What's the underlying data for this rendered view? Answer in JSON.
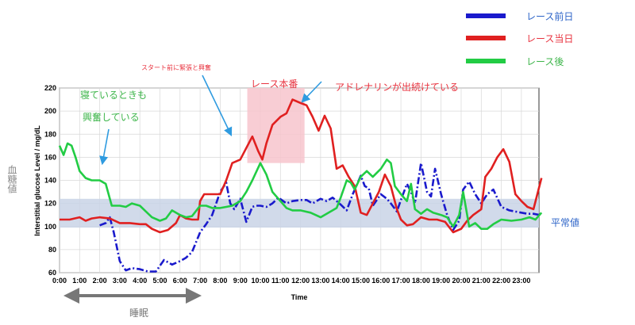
{
  "chart_data": {
    "type": "line",
    "xlabel": "Time",
    "ylabel": "Interstitial glucose Level / mg/dL",
    "ylim": [
      60,
      220
    ],
    "xlim": [
      0,
      24
    ],
    "yticks": [
      60,
      80,
      100,
      120,
      140,
      160,
      180,
      200,
      220
    ],
    "xticks": [
      "0:00",
      "1:00",
      "2:00",
      "3:00",
      "4:00",
      "5:00",
      "6:00",
      "7:00",
      "8:00",
      "9:00",
      "10:00",
      "11:00",
      "12:00",
      "13:00",
      "14:00",
      "15:00",
      "16:00",
      "17:00",
      "18:00",
      "19:00",
      "20:00",
      "21:00",
      "22:00",
      "23:00"
    ],
    "grid": true,
    "legend_position": "top-right",
    "normal_band": [
      99,
      124
    ],
    "series": [
      {
        "name": "レース前日",
        "color": "#1a1acc",
        "style": "dashdot",
        "points": [
          [
            2,
            101
          ],
          [
            2.3,
            103
          ],
          [
            2.5,
            108
          ],
          [
            2.7,
            95
          ],
          [
            3,
            70
          ],
          [
            3.3,
            62
          ],
          [
            3.6,
            64
          ],
          [
            4,
            63
          ],
          [
            4.4,
            61
          ],
          [
            4.8,
            61
          ],
          [
            5.2,
            71
          ],
          [
            5.6,
            67
          ],
          [
            6,
            70
          ],
          [
            6.3,
            73
          ],
          [
            6.6,
            78
          ],
          [
            7,
            95
          ],
          [
            7.3,
            102
          ],
          [
            7.6,
            110
          ],
          [
            8,
            130
          ],
          [
            8.3,
            138
          ],
          [
            8.5,
            120
          ],
          [
            8.7,
            115
          ],
          [
            9,
            124
          ],
          [
            9.3,
            104
          ],
          [
            9.6,
            117
          ],
          [
            9.8,
            118
          ],
          [
            10,
            118
          ],
          [
            10.3,
            117
          ],
          [
            10.6,
            120
          ],
          [
            10.9,
            125
          ],
          [
            11.3,
            120
          ],
          [
            11.6,
            122
          ],
          [
            12,
            123
          ],
          [
            12.3,
            123
          ],
          [
            12.6,
            120
          ],
          [
            13,
            124
          ],
          [
            13.3,
            122
          ],
          [
            13.6,
            125
          ],
          [
            14,
            119
          ],
          [
            14.3,
            114
          ],
          [
            14.6,
            128
          ],
          [
            15,
            144
          ],
          [
            15.2,
            135
          ],
          [
            15.4,
            133
          ],
          [
            15.6,
            118
          ],
          [
            16,
            128
          ],
          [
            16.3,
            124
          ],
          [
            16.5,
            120
          ],
          [
            16.8,
            113
          ],
          [
            17,
            123
          ],
          [
            17.3,
            137
          ],
          [
            17.5,
            130
          ],
          [
            17.7,
            120
          ],
          [
            18,
            155
          ],
          [
            18.3,
            130
          ],
          [
            18.5,
            126
          ],
          [
            18.7,
            150
          ],
          [
            19,
            128
          ],
          [
            19.3,
            110
          ],
          [
            19.6,
            97
          ],
          [
            19.9,
            105
          ],
          [
            20.1,
            132
          ],
          [
            20.4,
            139
          ],
          [
            20.7,
            128
          ],
          [
            21,
            120
          ],
          [
            21.3,
            128
          ],
          [
            21.6,
            132
          ],
          [
            22,
            117
          ],
          [
            22.4,
            114
          ],
          [
            23,
            112
          ],
          [
            23.3,
            111
          ],
          [
            23.6,
            111
          ],
          [
            23.9,
            110
          ]
        ]
      },
      {
        "name": "レース当日",
        "color": "#e02020",
        "style": "solid",
        "points": [
          [
            0,
            106
          ],
          [
            0.5,
            106
          ],
          [
            1,
            108
          ],
          [
            1.3,
            105
          ],
          [
            1.6,
            107
          ],
          [
            2,
            108
          ],
          [
            2.5,
            107
          ],
          [
            3,
            103
          ],
          [
            3.5,
            103
          ],
          [
            4,
            102
          ],
          [
            4.3,
            102
          ],
          [
            4.6,
            98
          ],
          [
            5,
            95
          ],
          [
            5.4,
            97
          ],
          [
            5.8,
            103
          ],
          [
            6,
            110
          ],
          [
            6.3,
            107
          ],
          [
            6.6,
            106
          ],
          [
            6.9,
            106
          ],
          [
            7,
            122
          ],
          [
            7.2,
            128
          ],
          [
            7.6,
            128
          ],
          [
            8,
            128
          ],
          [
            8.3,
            140
          ],
          [
            8.6,
            155
          ],
          [
            9,
            158
          ],
          [
            9.3,
            168
          ],
          [
            9.6,
            178
          ],
          [
            9.9,
            165
          ],
          [
            10.1,
            158
          ],
          [
            10.3,
            172
          ],
          [
            10.6,
            188
          ],
          [
            11,
            195
          ],
          [
            11.3,
            198
          ],
          [
            11.6,
            210
          ],
          [
            12,
            207
          ],
          [
            12.3,
            205
          ],
          [
            12.6,
            195
          ],
          [
            12.9,
            183
          ],
          [
            13.2,
            196
          ],
          [
            13.5,
            185
          ],
          [
            13.8,
            150
          ],
          [
            14.1,
            153
          ],
          [
            14.4,
            143
          ],
          [
            14.7,
            135
          ],
          [
            15,
            112
          ],
          [
            15.3,
            110
          ],
          [
            15.6,
            120
          ],
          [
            15.9,
            130
          ],
          [
            16.2,
            145
          ],
          [
            16.5,
            135
          ],
          [
            16.8,
            115
          ],
          [
            17,
            106
          ],
          [
            17.3,
            101
          ],
          [
            17.6,
            102
          ],
          [
            18,
            108
          ],
          [
            18.4,
            106
          ],
          [
            18.8,
            106
          ],
          [
            19.2,
            104
          ],
          [
            19.6,
            95
          ],
          [
            20,
            98
          ],
          [
            20.3,
            105
          ],
          [
            20.6,
            110
          ],
          [
            21,
            115
          ],
          [
            21.2,
            143
          ],
          [
            21.5,
            150
          ],
          [
            21.8,
            160
          ],
          [
            22.1,
            167
          ],
          [
            22.4,
            156
          ],
          [
            22.7,
            128
          ],
          [
            23,
            122
          ],
          [
            23.3,
            117
          ],
          [
            23.6,
            115
          ],
          [
            24,
            142
          ]
        ]
      },
      {
        "name": "レース後",
        "color": "#22cc44",
        "style": "solid",
        "points": [
          [
            0,
            170
          ],
          [
            0.2,
            162
          ],
          [
            0.4,
            172
          ],
          [
            0.6,
            170
          ],
          [
            0.8,
            160
          ],
          [
            1,
            148
          ],
          [
            1.3,
            142
          ],
          [
            1.6,
            140
          ],
          [
            2,
            140
          ],
          [
            2.3,
            137
          ],
          [
            2.6,
            118
          ],
          [
            3,
            118
          ],
          [
            3.3,
            117
          ],
          [
            3.6,
            120
          ],
          [
            4,
            118
          ],
          [
            4.3,
            113
          ],
          [
            4.6,
            108
          ],
          [
            5,
            105
          ],
          [
            5.3,
            107
          ],
          [
            5.6,
            114
          ],
          [
            6,
            110
          ],
          [
            6.3,
            108
          ],
          [
            6.6,
            109
          ],
          [
            7,
            118
          ],
          [
            7.3,
            118
          ],
          [
            7.6,
            116
          ],
          [
            8,
            116
          ],
          [
            8.3,
            117
          ],
          [
            8.6,
            118
          ],
          [
            9,
            122
          ],
          [
            9.3,
            130
          ],
          [
            9.6,
            140
          ],
          [
            10,
            155
          ],
          [
            10.3,
            145
          ],
          [
            10.6,
            130
          ],
          [
            11,
            122
          ],
          [
            11.3,
            116
          ],
          [
            11.6,
            114
          ],
          [
            12,
            114
          ],
          [
            12.5,
            112
          ],
          [
            13,
            108
          ],
          [
            13.5,
            113
          ],
          [
            13.8,
            116
          ],
          [
            14,
            125
          ],
          [
            14.3,
            140
          ],
          [
            14.5,
            138
          ],
          [
            14.7,
            132
          ],
          [
            15,
            143
          ],
          [
            15.3,
            148
          ],
          [
            15.6,
            143
          ],
          [
            16,
            150
          ],
          [
            16.3,
            158
          ],
          [
            16.5,
            155
          ],
          [
            16.7,
            135
          ],
          [
            17,
            128
          ],
          [
            17.3,
            122
          ],
          [
            17.5,
            137
          ],
          [
            17.7,
            115
          ],
          [
            18,
            111
          ],
          [
            18.3,
            115
          ],
          [
            18.6,
            112
          ],
          [
            19,
            110
          ],
          [
            19.3,
            108
          ],
          [
            19.6,
            100
          ],
          [
            19.9,
            110
          ],
          [
            20.1,
            130
          ],
          [
            20.4,
            100
          ],
          [
            20.7,
            103
          ],
          [
            21,
            98
          ],
          [
            21.3,
            98
          ],
          [
            21.6,
            102
          ],
          [
            22,
            106
          ],
          [
            22.5,
            105
          ],
          [
            23,
            106
          ],
          [
            23.4,
            108
          ],
          [
            23.7,
            106
          ],
          [
            24,
            112
          ]
        ]
      }
    ]
  },
  "labels": {
    "y_side": "血糖値",
    "normal": "平常値",
    "sleep": "睡眠",
    "start": "スタート前に緊張と興奮",
    "race": "レース本番",
    "adrenaline": "アドレナリンが出続けている",
    "sleeping_line1": "寝ているときも",
    "sleeping_line2": "興奮している"
  },
  "colors": {
    "band": "#c9d3e6",
    "race_box": "#f7c4cc",
    "arrow": "#2f9be0",
    "sleep_arrow": "#777777",
    "red_text": "#e8333f",
    "green_text": "#3db54a",
    "blue_text": "#2d64c8"
  }
}
